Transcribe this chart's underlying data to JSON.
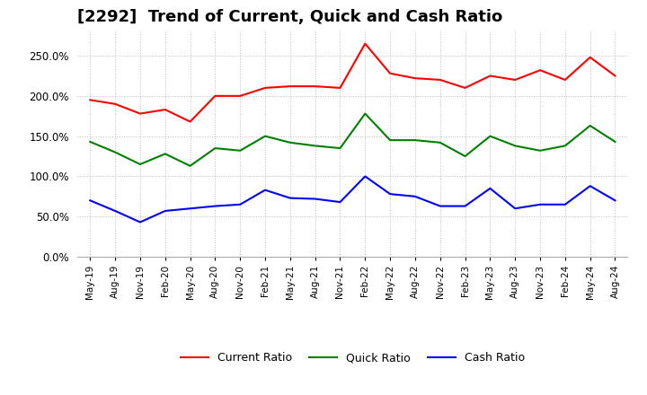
{
  "title": "[2292]  Trend of Current, Quick and Cash Ratio",
  "x_labels": [
    "May-19",
    "Aug-19",
    "Nov-19",
    "Feb-20",
    "May-20",
    "Aug-20",
    "Nov-20",
    "Feb-21",
    "May-21",
    "Aug-21",
    "Nov-21",
    "Feb-22",
    "May-22",
    "Aug-22",
    "Nov-22",
    "Feb-23",
    "May-23",
    "Aug-23",
    "Nov-23",
    "Feb-24",
    "May-24",
    "Aug-24"
  ],
  "current_ratio": [
    1.95,
    1.9,
    1.78,
    1.83,
    1.68,
    2.0,
    2.0,
    2.1,
    2.12,
    2.12,
    2.1,
    2.65,
    2.28,
    2.22,
    2.2,
    2.1,
    2.25,
    2.2,
    2.32,
    2.2,
    2.48,
    2.25
  ],
  "quick_ratio": [
    1.43,
    1.3,
    1.15,
    1.28,
    1.13,
    1.35,
    1.32,
    1.5,
    1.42,
    1.38,
    1.35,
    1.78,
    1.45,
    1.45,
    1.42,
    1.25,
    1.5,
    1.38,
    1.32,
    1.38,
    1.63,
    1.43
  ],
  "cash_ratio": [
    0.7,
    0.57,
    0.43,
    0.57,
    0.6,
    0.63,
    0.65,
    0.83,
    0.73,
    0.72,
    0.68,
    1.0,
    0.78,
    0.75,
    0.63,
    0.63,
    0.85,
    0.6,
    0.65,
    0.65,
    0.88,
    0.7
  ],
  "current_color": "#ff0000",
  "quick_color": "#008000",
  "cash_color": "#0000ff",
  "ylim": [
    0.0,
    2.8
  ],
  "yticks": [
    0.0,
    0.5,
    1.0,
    1.5,
    2.0,
    2.5
  ],
  "background_color": "#ffffff",
  "grid_color": "#bbbbbb",
  "title_fontsize": 13,
  "legend_labels": [
    "Current Ratio",
    "Quick Ratio",
    "Cash Ratio"
  ]
}
